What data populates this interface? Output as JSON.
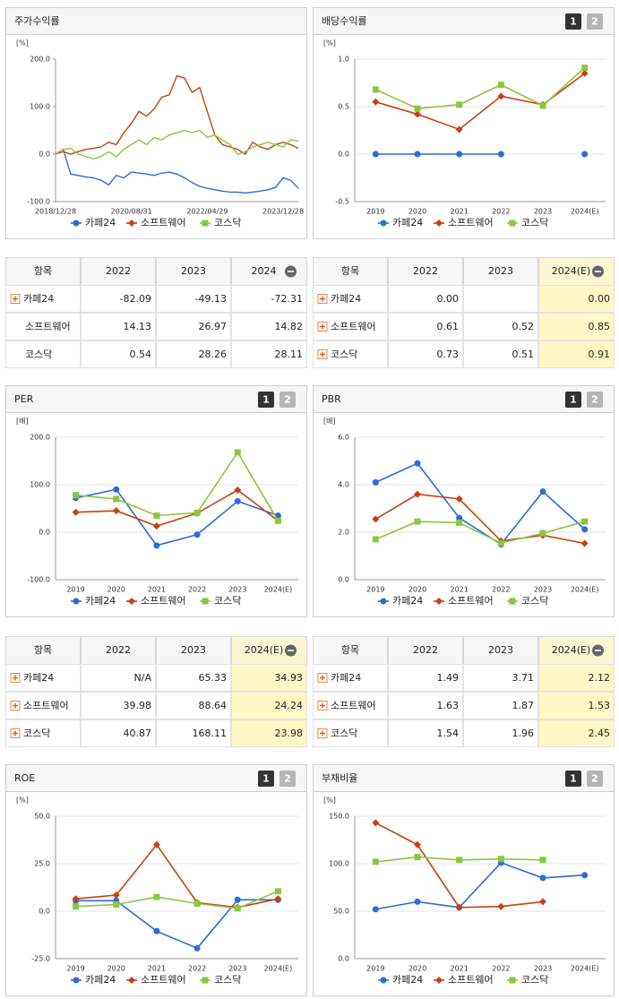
{
  "chart_data": [
    {
      "type": "line",
      "title": "주가수익률",
      "unit": "[%]",
      "markers": false,
      "grid": false,
      "categories": [
        "2018/12/28",
        null,
        null,
        null,
        null,
        null,
        null,
        null,
        null,
        null,
        "2020/08/31",
        null,
        null,
        null,
        null,
        null,
        null,
        null,
        null,
        null,
        "2022/04/29",
        null,
        null,
        null,
        null,
        null,
        null,
        null,
        null,
        null,
        "2023/12/28",
        null,
        null
      ],
      "series": [
        {
          "name": "카페24",
          "color": "#2d6bd8",
          "values": [
            0,
            10,
            -42,
            -45,
            -48,
            -50,
            -55,
            -65,
            -45,
            -50,
            -38,
            -40,
            -42,
            -45,
            -40,
            -38,
            -42,
            -50,
            -60,
            -68,
            -72,
            -75,
            -78,
            -80,
            -80,
            -82,
            -80,
            -78,
            -75,
            -70,
            -50,
            -55,
            -72
          ]
        },
        {
          "name": "소프트웨어",
          "color": "#c8410f",
          "values": [
            0,
            5,
            0,
            5,
            10,
            12,
            15,
            25,
            20,
            45,
            65,
            90,
            80,
            95,
            120,
            125,
            165,
            160,
            130,
            140,
            90,
            40,
            20,
            15,
            10,
            0,
            25,
            15,
            10,
            20,
            25,
            20,
            12
          ]
        },
        {
          "name": "코스닥",
          "color": "#8cc63f",
          "values": [
            0,
            10,
            12,
            0,
            -5,
            -10,
            -5,
            5,
            -5,
            10,
            20,
            30,
            20,
            35,
            30,
            40,
            45,
            50,
            45,
            50,
            35,
            40,
            30,
            20,
            0,
            5,
            15,
            20,
            25,
            20,
            15,
            30,
            28
          ]
        }
      ],
      "ylim": [
        -100,
        200
      ],
      "yticks": [
        {
          "value": -100,
          "label": "-100.0"
        },
        {
          "value": 0,
          "label": "0.0"
        },
        {
          "value": 100,
          "label": "100.0"
        },
        {
          "value": 200,
          "label": "200.0"
        }
      ]
    },
    {
      "type": "line",
      "title": "배당수익률",
      "buttons": [
        "1",
        "2"
      ],
      "unit": "[%]",
      "markers": true,
      "grid": true,
      "categories": [
        "2019",
        "2020",
        "2021",
        "2022",
        "2023",
        "2024(E)"
      ],
      "series": [
        {
          "name": "카페24",
          "color": "#2d6bd8",
          "marker": "circle",
          "values": [
            0,
            0,
            0,
            0,
            null,
            0
          ]
        },
        {
          "name": "소프트웨어",
          "color": "#c8410f",
          "marker": "diamond",
          "values": [
            0.55,
            0.42,
            0.26,
            0.61,
            0.52,
            0.85
          ]
        },
        {
          "name": "코스닥",
          "color": "#8cc63f",
          "marker": "square",
          "values": [
            0.68,
            0.48,
            0.52,
            0.73,
            0.51,
            0.91
          ]
        }
      ],
      "ylim": [
        -0.5,
        1
      ],
      "yticks": [
        -0.5,
        {
          "value": 0,
          "label": "0.0"
        },
        0.5,
        {
          "value": 1,
          "label": "1.0"
        }
      ]
    },
    {
      "type": "line",
      "title": "PER",
      "buttons": [
        "1",
        "2"
      ],
      "unit": "[배]",
      "markers": true,
      "grid": true,
      "categories": [
        "2019",
        "2020",
        "2021",
        "2022",
        "2023",
        "2024(E)"
      ],
      "series": [
        {
          "name": "카페24",
          "color": "#2d6bd8",
          "marker": "circle",
          "values": [
            72,
            90,
            -28,
            -5,
            65.33,
            34.93
          ]
        },
        {
          "name": "소프트웨어",
          "color": "#c8410f",
          "marker": "diamond",
          "values": [
            42,
            45,
            13,
            39.98,
            88.64,
            24.24
          ]
        },
        {
          "name": "코스닥",
          "color": "#8cc63f",
          "marker": "square",
          "values": [
            78,
            70,
            35,
            40.87,
            168.11,
            23.98
          ]
        }
      ],
      "ylim": [
        -100,
        200
      ],
      "yticks": [
        {
          "value": -100,
          "label": "-100.0"
        },
        {
          "value": 0,
          "label": "0.0"
        },
        {
          "value": 100,
          "label": "100.0"
        },
        {
          "value": 200,
          "label": "200.0"
        }
      ]
    },
    {
      "type": "line",
      "title": "PBR",
      "buttons": [
        "1",
        "2"
      ],
      "unit": "[배]",
      "markers": true,
      "grid": true,
      "categories": [
        "2019",
        "2020",
        "2021",
        "2022",
        "2023",
        "2024(E)"
      ],
      "series": [
        {
          "name": "카페24",
          "color": "#2d6bd8",
          "marker": "circle",
          "values": [
            4.1,
            4.9,
            2.6,
            1.49,
            3.71,
            2.12
          ]
        },
        {
          "name": "소프트웨어",
          "color": "#c8410f",
          "marker": "diamond",
          "values": [
            2.55,
            3.6,
            3.4,
            1.63,
            1.87,
            1.53
          ]
        },
        {
          "name": "코스닥",
          "color": "#8cc63f",
          "marker": "square",
          "values": [
            1.7,
            2.45,
            2.4,
            1.54,
            1.96,
            2.45
          ]
        }
      ],
      "ylim": [
        0,
        6
      ],
      "yticks": [
        {
          "value": 0,
          "label": "0.0"
        },
        {
          "value": 2,
          "label": "2.0"
        },
        {
          "value": 4,
          "label": "4.0"
        },
        {
          "value": 6,
          "label": "6.0"
        }
      ]
    },
    {
      "type": "line",
      "title": "ROE",
      "buttons": [
        "1",
        "2"
      ],
      "unit": "[%]",
      "markers": true,
      "grid": true,
      "categories": [
        "2019",
        "2020",
        "2021",
        "2022",
        "2023",
        "2024(E)"
      ],
      "series": [
        {
          "name": "카페24",
          "color": "#2d6bd8",
          "marker": "circle",
          "values": [
            5.5,
            5.5,
            -10.5,
            -19.5,
            6,
            6
          ]
        },
        {
          "name": "소프트웨어",
          "color": "#c8410f",
          "marker": "diamond",
          "values": [
            6.5,
            8.5,
            35,
            4.5,
            2,
            6.5
          ]
        },
        {
          "name": "코스닥",
          "color": "#8cc63f",
          "marker": "square",
          "values": [
            2.5,
            3.5,
            7.5,
            4,
            1.5,
            10.5
          ]
        }
      ],
      "ylim": [
        -25,
        50
      ],
      "yticks": [
        {
          "value": -25,
          "label": "-25.0"
        },
        {
          "value": 0,
          "label": "0.0"
        },
        {
          "value": 25,
          "label": "25.0"
        },
        {
          "value": 50,
          "label": "50.0"
        }
      ]
    },
    {
      "type": "line",
      "title": "부채비율",
      "buttons": [
        "1",
        "2"
      ],
      "unit": "[%]",
      "markers": true,
      "grid": true,
      "categories": [
        "2019",
        "2020",
        "2021",
        "2022",
        "2023",
        "2024(E)"
      ],
      "series": [
        {
          "name": "카페24",
          "color": "#2d6bd8",
          "marker": "circle",
          "values": [
            52,
            60,
            54,
            101,
            85,
            88
          ]
        },
        {
          "name": "소프트웨어",
          "color": "#c8410f",
          "marker": "diamond",
          "values": [
            143,
            120,
            54,
            55,
            60,
            null
          ]
        },
        {
          "name": "코스닥",
          "color": "#8cc63f",
          "marker": "square",
          "values": [
            102,
            107,
            104,
            105,
            104,
            null
          ]
        }
      ],
      "ylim": [
        0,
        150
      ],
      "yticks": [
        {
          "value": 0,
          "label": "0.0"
        },
        {
          "value": 50,
          "label": "50.0"
        },
        {
          "value": 100,
          "label": "100.0"
        },
        {
          "value": 150,
          "label": "150.0"
        }
      ]
    }
  ],
  "tables": [
    {
      "columns": [
        "항목",
        "2022",
        "2023",
        "2024"
      ],
      "highlight_last": false,
      "rows": [
        {
          "label": "카페24",
          "plus_icon": true,
          "cells": [
            "-82.09",
            "-49.13",
            "-72.31"
          ]
        },
        {
          "label": "소프트웨어",
          "plus_icon": false,
          "cells": [
            "14.13",
            "26.97",
            "14.82"
          ]
        },
        {
          "label": "코스닥",
          "plus_icon": false,
          "cells": [
            "0.54",
            "28.26",
            "28.11"
          ]
        }
      ]
    },
    {
      "columns": [
        "항목",
        "2022",
        "2023",
        "2024(E)"
      ],
      "highlight_last": true,
      "rows": [
        {
          "label": "카페24",
          "plus_icon": true,
          "cells": [
            "0.00",
            null,
            "0.00"
          ]
        },
        {
          "label": "소프트웨어",
          "plus_icon": true,
          "cells": [
            "0.61",
            "0.52",
            "0.85"
          ]
        },
        {
          "label": "코스닥",
          "plus_icon": true,
          "cells": [
            "0.73",
            "0.51",
            "0.91"
          ]
        }
      ]
    },
    {
      "columns": [
        "항목",
        "2022",
        "2023",
        "2024(E)"
      ],
      "highlight_last": true,
      "rows": [
        {
          "label": "카페24",
          "plus_icon": true,
          "cells": [
            "N/A",
            "65.33",
            "34.93"
          ]
        },
        {
          "label": "소프트웨어",
          "plus_icon": true,
          "cells": [
            "39.98",
            "88.64",
            "24.24"
          ]
        },
        {
          "label": "코스닥",
          "plus_icon": true,
          "cells": [
            "40.87",
            "168.11",
            "23.98"
          ]
        }
      ]
    },
    {
      "columns": [
        "항목",
        "2022",
        "2023",
        "2024(E)"
      ],
      "highlight_last": true,
      "rows": [
        {
          "label": "카페24",
          "plus_icon": true,
          "cells": [
            "1.49",
            "3.71",
            "2.12"
          ]
        },
        {
          "label": "소프트웨어",
          "plus_icon": true,
          "cells": [
            "1.63",
            "1.87",
            "1.53"
          ]
        },
        {
          "label": "코스닥",
          "plus_icon": true,
          "cells": [
            "1.54",
            "1.96",
            "2.45"
          ]
        }
      ]
    }
  ]
}
